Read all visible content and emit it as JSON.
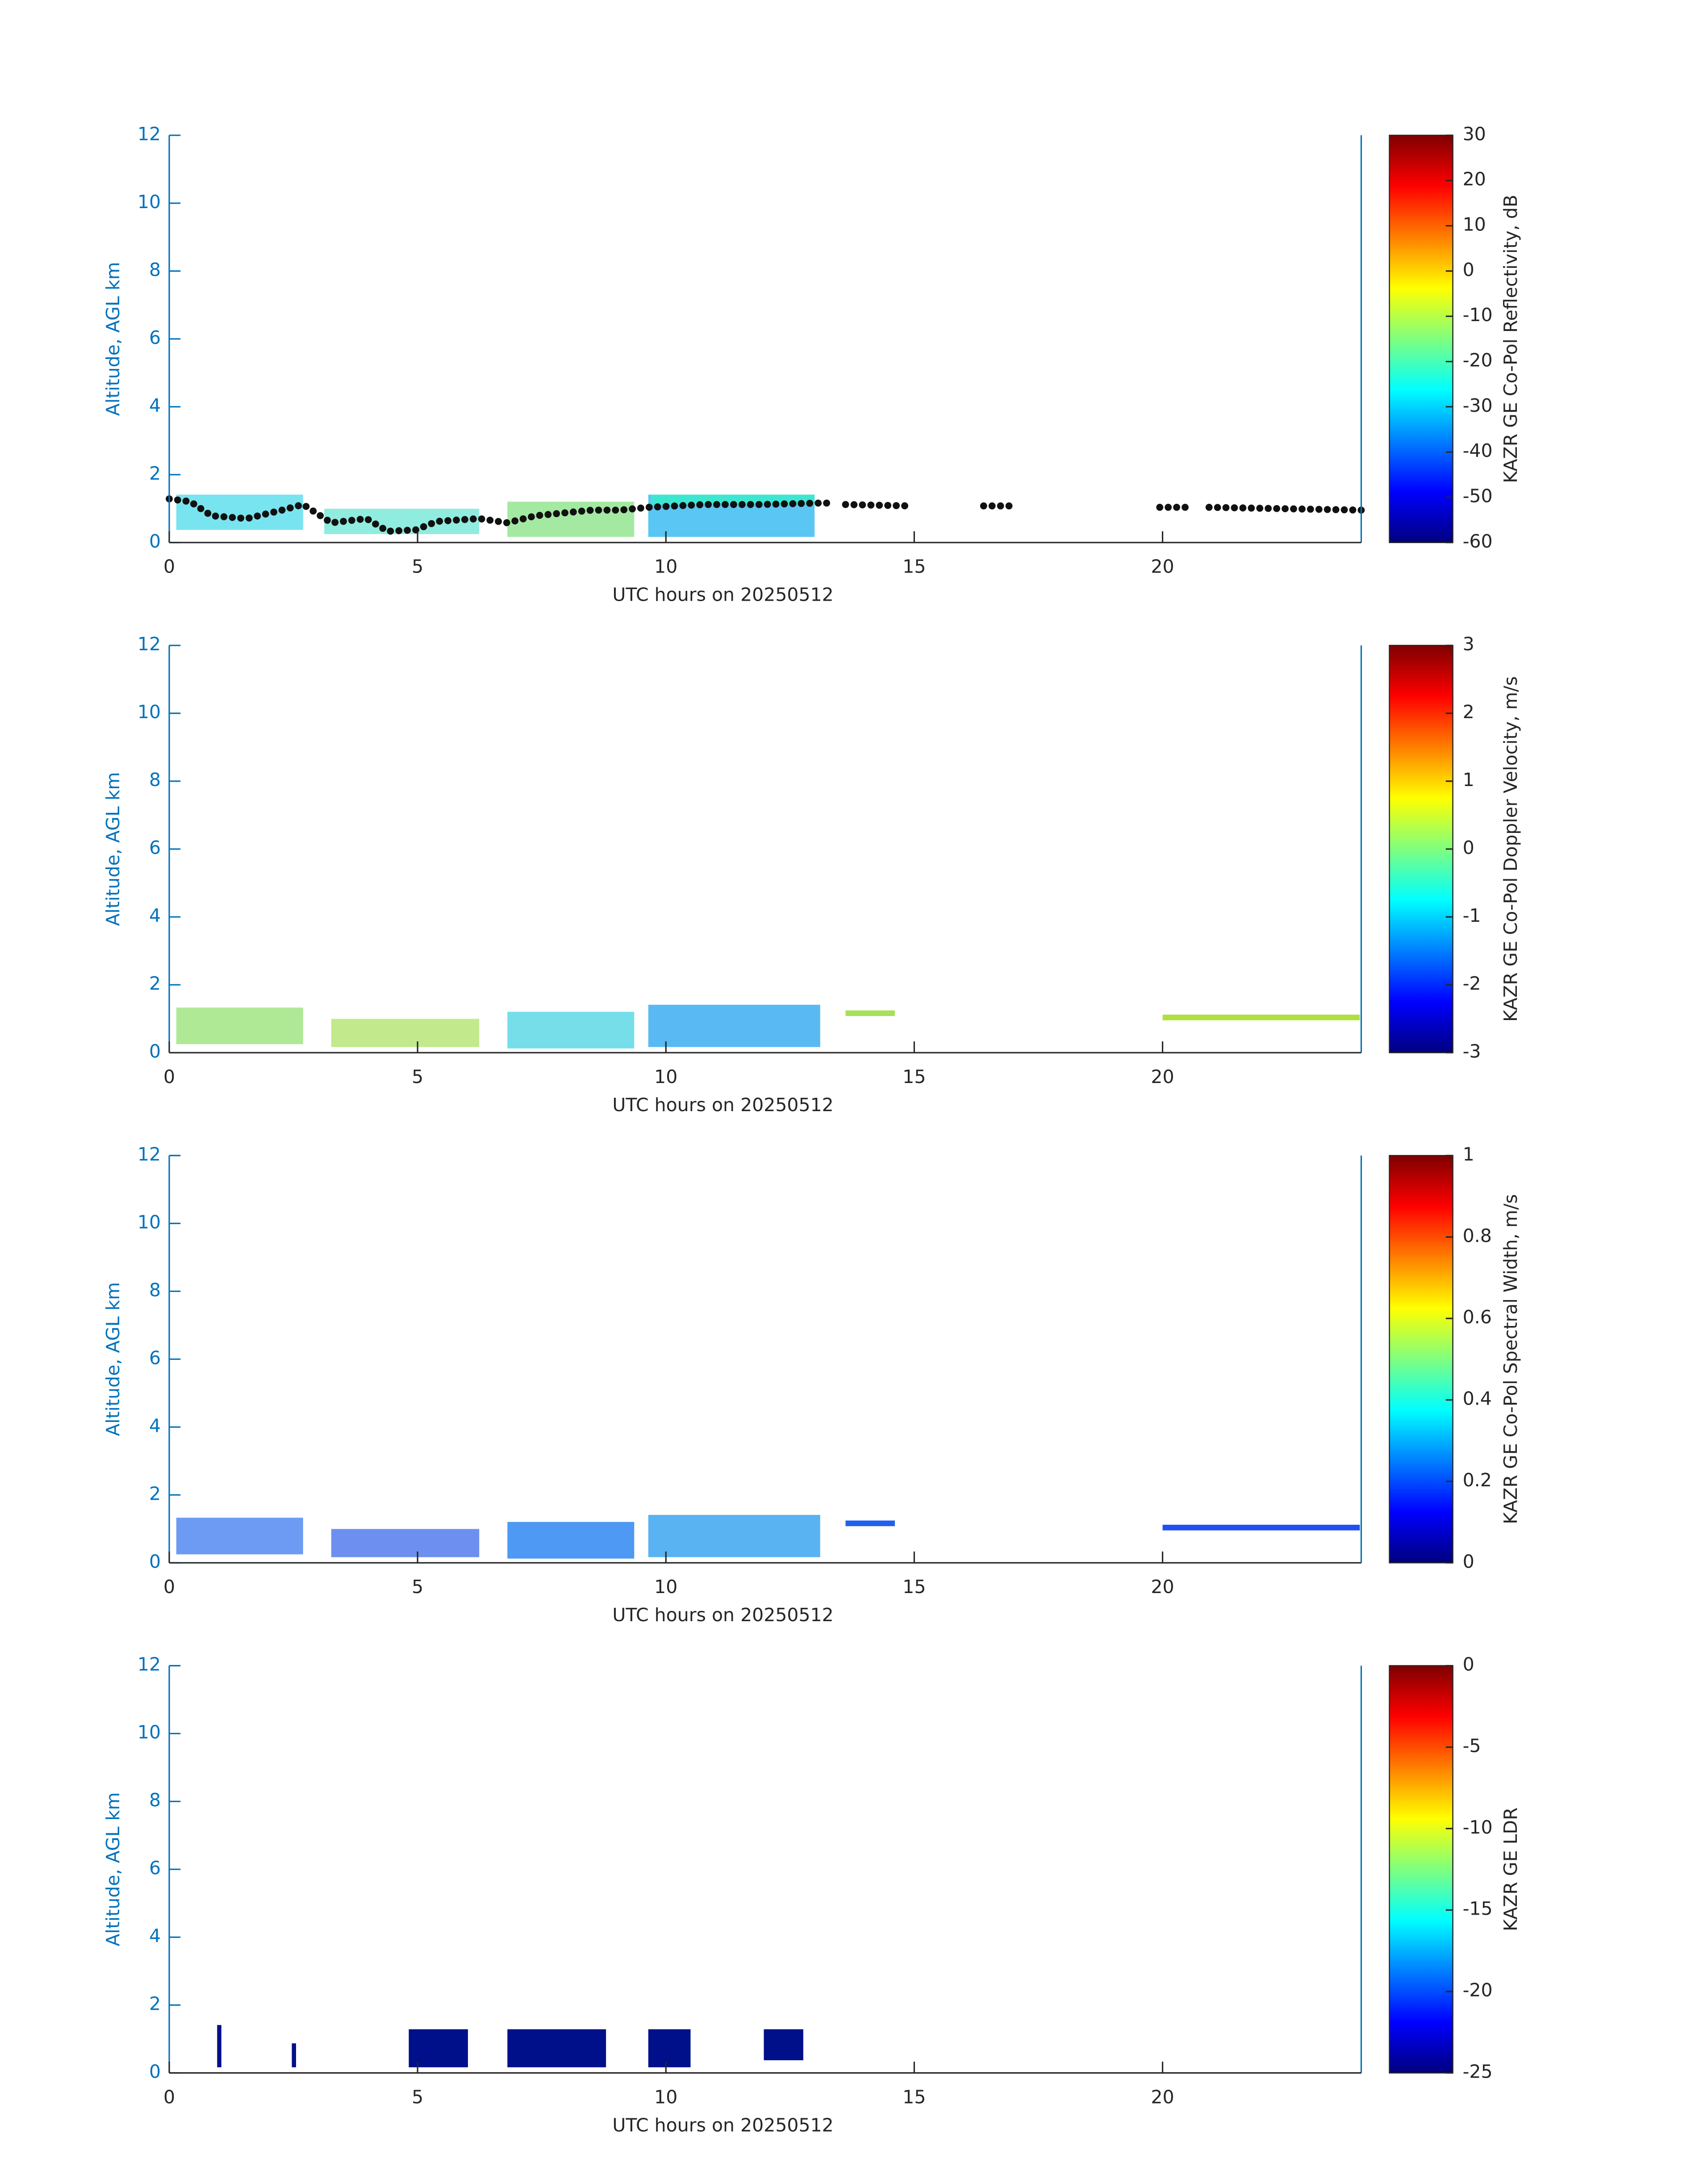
{
  "chart_data": [
    {
      "type": "heatmap",
      "xlabel": "UTC hours on 20250512",
      "ylabel": "Altitude, AGL km",
      "xlim": [
        0,
        24
      ],
      "ylim": [
        0,
        12
      ],
      "xticks": [
        0,
        5,
        10,
        15,
        20
      ],
      "yticks": [
        0,
        2,
        4,
        6,
        8,
        10,
        12
      ],
      "colorbar": {
        "label": "KAZR GE Co-Pol Reflectivity, dB",
        "colormap": "jet",
        "lim": [
          -60,
          30
        ],
        "ticks": [
          -60,
          -50,
          -40,
          -30,
          -20,
          -10,
          0,
          10,
          20,
          30
        ]
      }
    },
    {
      "type": "heatmap",
      "xlabel": "UTC hours on 20250512",
      "ylabel": "Altitude, AGL km",
      "xlim": [
        0,
        24
      ],
      "ylim": [
        0,
        12
      ],
      "xticks": [
        0,
        5,
        10,
        15,
        20
      ],
      "yticks": [
        0,
        2,
        4,
        6,
        8,
        10,
        12
      ],
      "colorbar": {
        "label": "KAZR GE Co-Pol Doppler Velocity, m/s",
        "colormap": "jet",
        "lim": [
          -3,
          3
        ],
        "ticks": [
          -3,
          -2,
          -1,
          0,
          1,
          2,
          3
        ]
      }
    },
    {
      "type": "heatmap",
      "xlabel": "UTC hours on 20250512",
      "ylabel": "Altitude, AGL km",
      "xlim": [
        0,
        24
      ],
      "ylim": [
        0,
        12
      ],
      "xticks": [
        0,
        5,
        10,
        15,
        20
      ],
      "yticks": [
        0,
        2,
        4,
        6,
        8,
        10,
        12
      ],
      "colorbar": {
        "label": "KAZR GE Co-Pol Spectral Width, m/s",
        "colormap": "jet",
        "lim": [
          0,
          1
        ],
        "ticks": [
          0,
          0.2,
          0.4,
          0.6,
          0.8,
          1
        ]
      }
    },
    {
      "type": "heatmap",
      "xlabel": "UTC hours on 20250512",
      "ylabel": "Altitude, AGL km",
      "xlim": [
        0,
        24
      ],
      "ylim": [
        0,
        12
      ],
      "xticks": [
        0,
        5,
        10,
        15,
        20
      ],
      "yticks": [
        0,
        2,
        4,
        6,
        8,
        10,
        12
      ],
      "colorbar": {
        "label": "KAZR GE LDR",
        "colormap": "jet",
        "lim": [
          -25,
          0
        ],
        "ticks": [
          -25,
          -20,
          -15,
          -10,
          -5,
          0
        ]
      }
    }
  ]
}
